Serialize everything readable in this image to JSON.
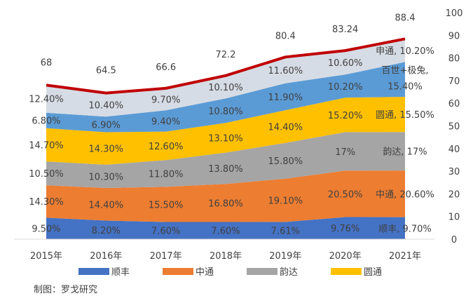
{
  "chart_data": {
    "type": "area",
    "categories": [
      "2015年",
      "2016年",
      "2017年",
      "2018年",
      "2019年",
      "2020年",
      "2021年"
    ],
    "series": [
      {
        "name": "顺丰",
        "color": "#4472C4",
        "values": [
          9.5,
          8.2,
          7.6,
          7.6,
          7.61,
          9.76,
          9.7
        ],
        "labels": [
          "9.50%",
          "8.20%",
          "7.60%",
          "7.60%",
          "7.61%",
          "9.76%",
          "顺丰, 9.70%"
        ]
      },
      {
        "name": "中通",
        "color": "#ED7D31",
        "values": [
          14.3,
          14.4,
          15.5,
          16.8,
          19.1,
          20.5,
          20.6
        ],
        "labels": [
          "14.30%",
          "14.40%",
          "15.50%",
          "16.80%",
          "19.10%",
          "20.50%",
          "中通, 20.60%"
        ]
      },
      {
        "name": "韵达",
        "color": "#A5A5A5",
        "values": [
          10.5,
          10.3,
          11.8,
          13.8,
          15.8,
          17,
          17
        ],
        "labels": [
          "10.50%",
          "10.30%",
          "11.80%",
          "13.80%",
          "15.80%",
          "17%",
          "韵达, 17%"
        ]
      },
      {
        "name": "圆通",
        "color": "#FFC000",
        "values": [
          14.7,
          14.3,
          12.6,
          13.1,
          14.4,
          15.2,
          15.5
        ],
        "labels": [
          "14.70%",
          "14.30%",
          "12.60%",
          "13.10%",
          "14.40%",
          "15.20%",
          "圆通, 15.50%"
        ]
      },
      {
        "name": "百世+极兔",
        "color": "#5B9BD5",
        "values": [
          6.8,
          6.9,
          9.4,
          10.8,
          11.9,
          10.2,
          15.4
        ],
        "labels": [
          "6.80%",
          "6.90%",
          "9.40%",
          "10.80%",
          "11.90%",
          "10.20%",
          "15.40%"
        ],
        "end_label": "百世+极兔,"
      },
      {
        "name": "申通",
        "color": "#D6DCE5",
        "values": [
          12.4,
          10.4,
          9.7,
          10.1,
          11.6,
          10.6,
          10.2
        ],
        "labels": [
          "12.40%",
          "10.40%",
          "9.70%",
          "10.10%",
          "11.60%",
          "10.60%",
          "申通, 10.20%"
        ]
      }
    ],
    "line": {
      "color": "#C00000",
      "values": [
        68,
        64.5,
        66.6,
        72.2,
        80.4,
        83.24,
        88.4
      ],
      "labels": [
        "68",
        "64.5",
        "66.6",
        "72.2",
        "80.4",
        "83.24",
        "88.4"
      ]
    },
    "y_axis": {
      "min": 0,
      "max": 100,
      "ticks": [
        "0",
        "10",
        "20",
        "30",
        "40",
        "50",
        "60",
        "70",
        "80",
        "90",
        "100"
      ],
      "position": "right"
    },
    "legend": {
      "position": "bottom",
      "items": [
        "顺丰",
        "中通",
        "韵达",
        "圆通"
      ]
    }
  },
  "source": "制图：罗戈研究"
}
